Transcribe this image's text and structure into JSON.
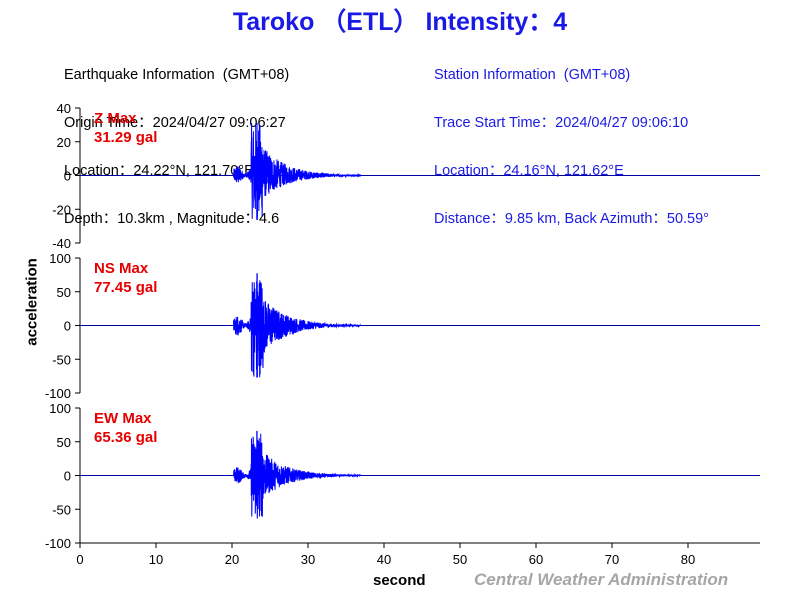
{
  "title": "Taroko （ETL） Intensity：4",
  "earthquake_info": {
    "header": "Earthquake Information  (GMT+08)",
    "origin_time": "Origin Time：2024/04/27 09:06:27",
    "location": "Location：24.22°N, 121.70°E",
    "depth_magnitude": "Depth：10.3km , Magnitude：4.6"
  },
  "station_info": {
    "header": "Station Information  (GMT+08)",
    "trace_start": "Trace Start Time：2024/04/27 09:06:10",
    "location": "Location：24.16°N, 121.62°E",
    "distance": "Distance：9.85 km, Back Azimuth：50.59°"
  },
  "credit": "Central Weather Administration",
  "colors": {
    "title": "#1a1ae6",
    "station_info": "#1a1ae6",
    "trace": "#0000ff",
    "max_label": "#e60000",
    "credit": "#a6a6a6"
  },
  "chart_data": {
    "type": "line",
    "xlabel": "second",
    "ylabel": "acceleration",
    "xlim": [
      0,
      89
    ],
    "xticks": [
      0,
      10,
      20,
      30,
      40,
      50,
      60,
      70,
      80
    ],
    "panels": [
      {
        "component": "Z",
        "max_label": "Z Max",
        "max_value": "31.29 gal",
        "peak_gal": 31.29,
        "peak_neg_gal": -26,
        "ylim": [
          -40,
          40
        ],
        "yticks": [
          40,
          20,
          0,
          -20,
          -40
        ]
      },
      {
        "component": "NS",
        "max_label": "NS Max",
        "max_value": "77.45 gal",
        "peak_gal": 77.45,
        "peak_neg_gal": -77,
        "ylim": [
          -100,
          100
        ],
        "yticks": [
          100,
          50,
          0,
          -50,
          -100
        ]
      },
      {
        "component": "EW",
        "max_label": "EW Max",
        "max_value": "65.36 gal",
        "peak_gal": 65.36,
        "peak_neg_gal": -63,
        "ylim": [
          -100,
          100
        ],
        "yticks": [
          100,
          50,
          0,
          -50,
          -100
        ]
      }
    ],
    "waveform": {
      "onset_s": 20.2,
      "peak_s": 23.3,
      "coda_end_s": 45
    }
  }
}
